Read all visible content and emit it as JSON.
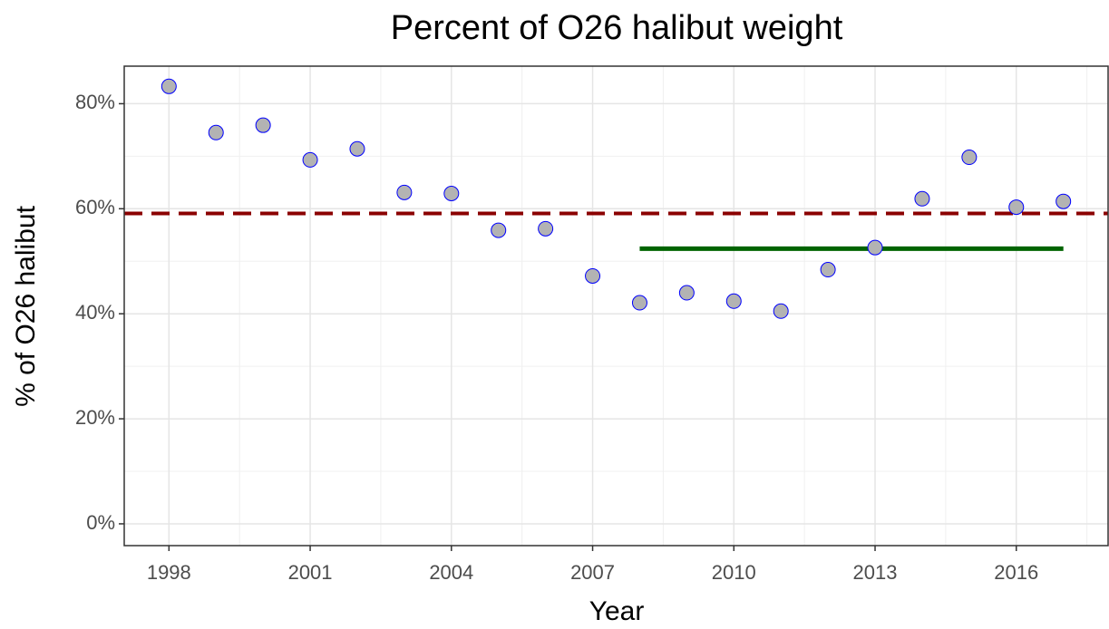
{
  "chart_data": {
    "type": "scatter",
    "title": "Percent of O26 halibut weight",
    "x_label": "Year",
    "y_label": "% of O26 halibut",
    "x": [
      1998,
      1999,
      2000,
      2001,
      2002,
      2003,
      2004,
      2005,
      2006,
      2007,
      2008,
      2009,
      2010,
      2011,
      2012,
      2013,
      2014,
      2015,
      2016,
      2017
    ],
    "values": [
      83.3,
      74.5,
      75.9,
      69.3,
      71.4,
      63.1,
      62.9,
      55.9,
      56.2,
      47.2,
      42.1,
      44.0,
      42.4,
      40.5,
      48.4,
      52.6,
      61.9,
      69.8,
      60.3,
      61.4
    ],
    "color": "#b3b3b3",
    "edge_color": "#0000ff",
    "xlim": [
      1997.05,
      2017.95
    ],
    "xticks": [
      1998,
      2001,
      2004,
      2007,
      2010,
      2013,
      2016
    ],
    "xminorticks": [
      1999.5,
      2002.5,
      2005.5,
      2008.5,
      2011.5,
      2014.5,
      2017.5
    ],
    "ylim": [
      -4.15,
      87.15
    ],
    "yticks": [
      {
        "value": 0,
        "label": "0%"
      },
      {
        "value": 20,
        "label": "20%"
      },
      {
        "value": 40,
        "label": "40%"
      },
      {
        "value": 60,
        "label": "60%"
      },
      {
        "value": 80,
        "label": "80%"
      }
    ],
    "yminorticks": [
      10,
      30,
      50,
      70
    ],
    "grid": true,
    "hline": {
      "value": 59.1,
      "color": "#8b0000"
    },
    "segment": {
      "x": [
        2008,
        2017
      ],
      "value": 52.4,
      "color": "#006400"
    }
  }
}
